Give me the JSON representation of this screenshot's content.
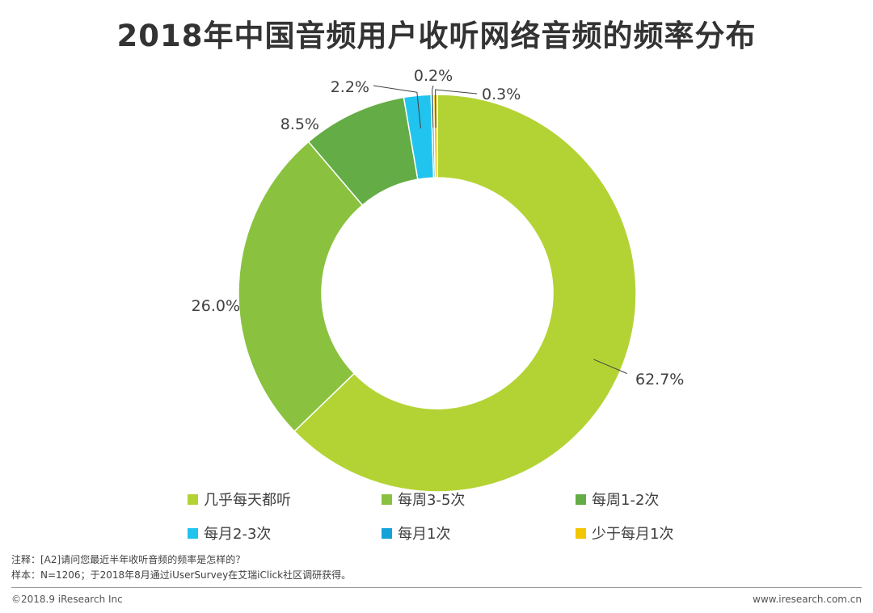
{
  "chart_data": {
    "type": "pie",
    "variant": "donut",
    "title": "2018年中国音频用户收听网络音频的频率分布",
    "categories": [
      "几乎每天都听",
      "每周3-5次",
      "每周1-2次",
      "每月2-3次",
      "每月1次",
      "少于每月1次"
    ],
    "values": [
      62.7,
      26.0,
      8.5,
      2.2,
      0.2,
      0.3
    ],
    "value_labels": [
      "62.7%",
      "26.0%",
      "8.5%",
      "2.2%",
      "0.2%",
      "0.3%"
    ],
    "colors": [
      "#B3D334",
      "#8AC23F",
      "#64AC45",
      "#21C4EE",
      "#14A2DB",
      "#F2C600"
    ],
    "legend_position": "bottom",
    "start_angle_deg": 0,
    "direction": "clockwise"
  },
  "legend": [
    {
      "label": "几乎每天都听",
      "color": "#B3D334"
    },
    {
      "label": "每周3-5次",
      "color": "#8AC23F"
    },
    {
      "label": "每周1-2次",
      "color": "#64AC45"
    },
    {
      "label": "每月2-3次",
      "color": "#21C4EE"
    },
    {
      "label": "每月1次",
      "color": "#14A2DB"
    },
    {
      "label": "少于每月1次",
      "color": "#F2C600"
    }
  ],
  "notes": {
    "note": "注释：[A2]请问您最近半年收听音频的频率是怎样的？",
    "sample": "样本：N=1206；于2018年8月通过iUserSurvey在艾瑞iClick社区调研获得。"
  },
  "footer": {
    "copyright": "©2018.9 iResearch Inc",
    "website": "www.iresearch.com.cn"
  }
}
